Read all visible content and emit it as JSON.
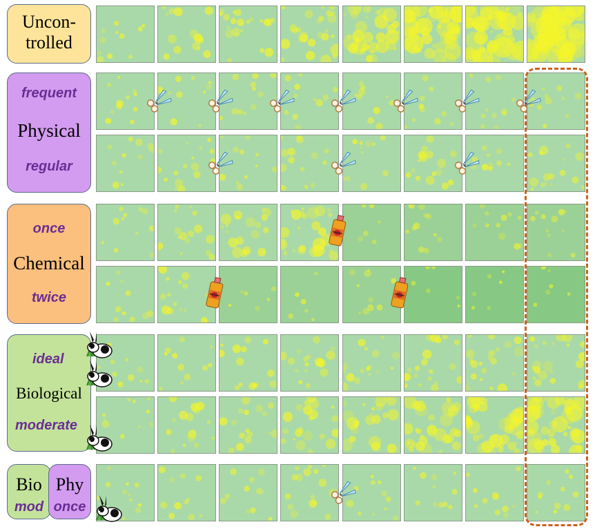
{
  "groups": {
    "uncontrolled": {
      "label": "Uncon-\ntrolled",
      "color": "#fde49a"
    },
    "physical": {
      "label": "Physical",
      "sub_top": "frequent",
      "sub_bottom": "regular",
      "color": "#d39cf0"
    },
    "chemical": {
      "label": "Chemical",
      "sub_top": "once",
      "sub_bottom": "twice",
      "color": "#fbbf7e"
    },
    "biological": {
      "label": "Biological",
      "sub_top": "ideal",
      "sub_bottom": "moderate",
      "color": "#c3e39a"
    },
    "combined": {
      "bio_label": "Bio",
      "bio_sub": "mod",
      "phy_label": "Phy",
      "phy_sub": "once"
    }
  },
  "colors": {
    "tile_base": "#a9d9a8",
    "weed": "#f4f52a",
    "frame": "#c8621e",
    "text_sub": "#6a2d94"
  },
  "rows": [
    {
      "name": "uncontrolled",
      "weed_levels": [
        1,
        2,
        3,
        4,
        6,
        8,
        9,
        10
      ],
      "tile_tone": [
        0,
        0,
        0,
        0,
        0,
        0,
        0,
        0
      ],
      "markers": []
    },
    {
      "name": "physical-frequent",
      "weed_levels": [
        1,
        1,
        1,
        1,
        1,
        1,
        1,
        1
      ],
      "tile_tone": [
        0,
        0,
        0,
        0,
        0,
        0,
        0,
        0
      ],
      "markers": [
        {
          "type": "scissors",
          "after": 0
        },
        {
          "type": "scissors",
          "after": 1
        },
        {
          "type": "scissors",
          "after": 2
        },
        {
          "type": "scissors",
          "after": 3
        },
        {
          "type": "scissors",
          "after": 4
        },
        {
          "type": "scissors",
          "after": 5
        },
        {
          "type": "scissors",
          "after": 6
        }
      ]
    },
    {
      "name": "physical-regular",
      "weed_levels": [
        1,
        2,
        1,
        2,
        1,
        2,
        1,
        2
      ],
      "tile_tone": [
        0,
        0,
        0,
        0,
        0,
        0,
        0,
        0
      ],
      "markers": [
        {
          "type": "scissors",
          "after": 1
        },
        {
          "type": "scissors",
          "after": 3
        },
        {
          "type": "scissors",
          "after": 5
        }
      ]
    },
    {
      "name": "chemical-once",
      "weed_levels": [
        1,
        2,
        3,
        4,
        0,
        1,
        1,
        1
      ],
      "tile_tone": [
        0,
        0,
        0,
        0,
        1,
        1,
        1,
        1
      ],
      "markers": [
        {
          "type": "spray",
          "after": 3
        }
      ]
    },
    {
      "name": "chemical-twice",
      "weed_levels": [
        1,
        2,
        0,
        0,
        1,
        0,
        0,
        0
      ],
      "tile_tone": [
        0,
        0,
        1,
        1,
        1,
        2,
        2,
        2
      ],
      "markers": [
        {
          "type": "spray",
          "after": 1
        },
        {
          "type": "spray",
          "after": 4
        }
      ]
    },
    {
      "name": "biological-ideal",
      "weed_levels": [
        1,
        1,
        2,
        2,
        2,
        3,
        3,
        3
      ],
      "tile_tone": [
        0,
        0,
        0,
        0,
        0,
        0,
        0,
        0
      ],
      "markers": []
    },
    {
      "name": "biological-moderate",
      "weed_levels": [
        1,
        2,
        2,
        3,
        4,
        5,
        6,
        7
      ],
      "tile_tone": [
        0,
        0,
        0,
        0,
        0,
        0,
        0,
        0
      ],
      "markers": []
    },
    {
      "name": "combined",
      "weed_levels": [
        1,
        1,
        1,
        2,
        1,
        1,
        1,
        1
      ],
      "tile_tone": [
        0,
        0,
        0,
        0,
        0,
        0,
        0,
        0
      ],
      "markers": [
        {
          "type": "scissors",
          "after": 3
        }
      ]
    }
  ],
  "rabbits": [
    "biological-ideal-a",
    "biological-ideal-b",
    "biological-moderate",
    "combined"
  ]
}
